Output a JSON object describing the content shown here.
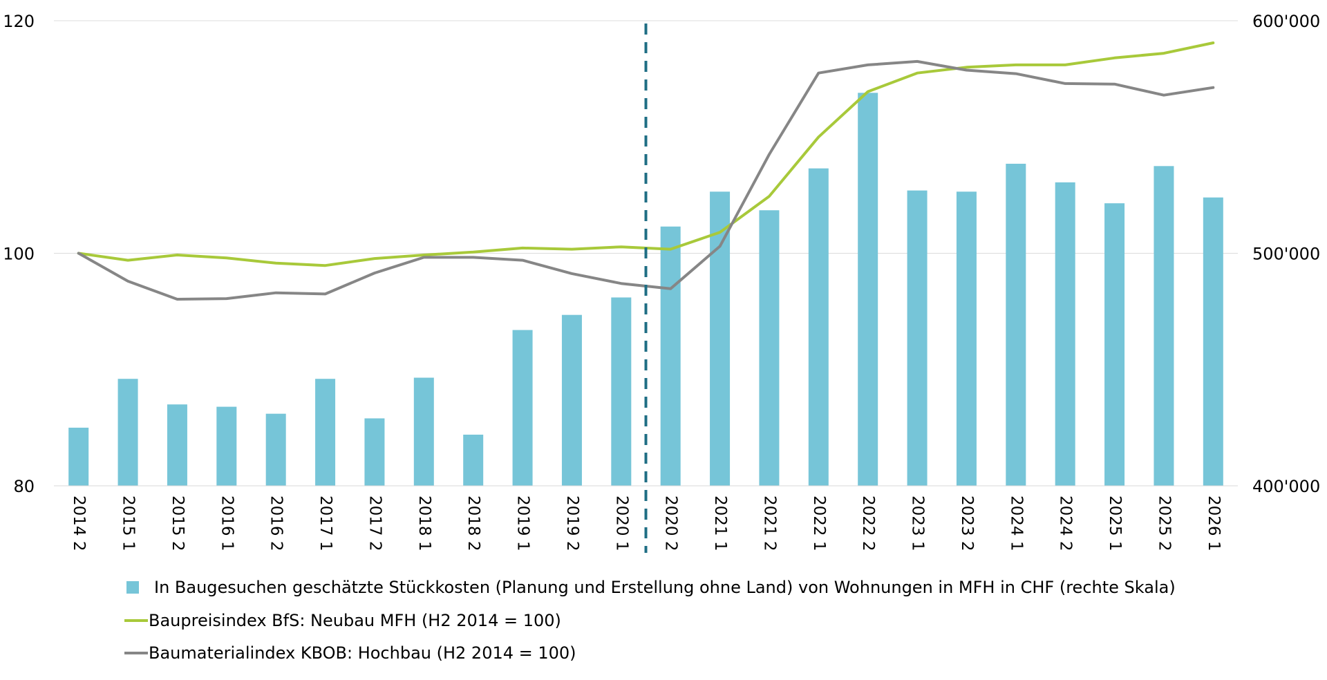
{
  "chart_data": {
    "type": "bar",
    "categories": [
      "2014 2",
      "2015 1",
      "2015 2",
      "2016 1",
      "2016 2",
      "2017 1",
      "2017 2",
      "2018 1",
      "2018 2",
      "2019 1",
      "2019 2",
      "2020 1",
      "2020 2",
      "2021 1",
      "2021 2",
      "2022 1",
      "2022 2",
      "2023 1",
      "2023 2",
      "2024 1",
      "2024 2",
      "2025 1",
      "2025 2",
      "2026 1"
    ],
    "y_left": {
      "ylim": [
        80,
        120
      ],
      "ticks": [
        80,
        100,
        120
      ],
      "tick_labels": [
        "80",
        "100",
        "120"
      ]
    },
    "y_right": {
      "ylim": [
        400000,
        600000
      ],
      "ticks": [
        400000,
        500000,
        600000
      ],
      "tick_labels": [
        "400'000",
        "500'000",
        "600'000"
      ]
    },
    "grid": true,
    "legend_position": "bottom",
    "divider_after_category": "2020 1",
    "series": [
      {
        "name": "In Baugesuchen geschätzte Stückkosten (Planung und Erstellung ohne Land) von Wohnungen in MFH in CHF (rechte Skala)",
        "kind": "bar",
        "axis": "right",
        "color": "#76c5d8",
        "values": [
          425000,
          446000,
          435000,
          434000,
          431000,
          446000,
          429000,
          446500,
          422000,
          467000,
          473500,
          481000,
          511500,
          526500,
          518500,
          536500,
          569000,
          527000,
          526500,
          538500,
          530500,
          521500,
          537500,
          524000
        ]
      },
      {
        "name": "Baupreisindex BfS: Neubau MFH (H2 2014 = 100)",
        "kind": "line",
        "axis": "left",
        "color": "#a8c93a",
        "values": [
          100.0,
          99.4,
          99.85,
          99.6,
          99.15,
          98.95,
          99.55,
          99.85,
          100.1,
          100.45,
          100.35,
          100.55,
          100.35,
          101.8,
          104.9,
          110.0,
          113.9,
          115.5,
          116.0,
          116.2,
          116.2,
          116.8,
          117.2,
          118.1
        ]
      },
      {
        "name": "Baumaterialindex KBOB: Hochbau (H2 2014 = 100)",
        "kind": "line",
        "axis": "left",
        "color": "#868686",
        "values": [
          100.0,
          97.6,
          96.05,
          96.1,
          96.6,
          96.5,
          98.3,
          99.65,
          99.65,
          99.4,
          98.25,
          97.4,
          96.95,
          100.6,
          108.5,
          115.5,
          116.2,
          116.5,
          115.75,
          115.45,
          114.6,
          114.55,
          113.6,
          114.25
        ]
      }
    ]
  }
}
